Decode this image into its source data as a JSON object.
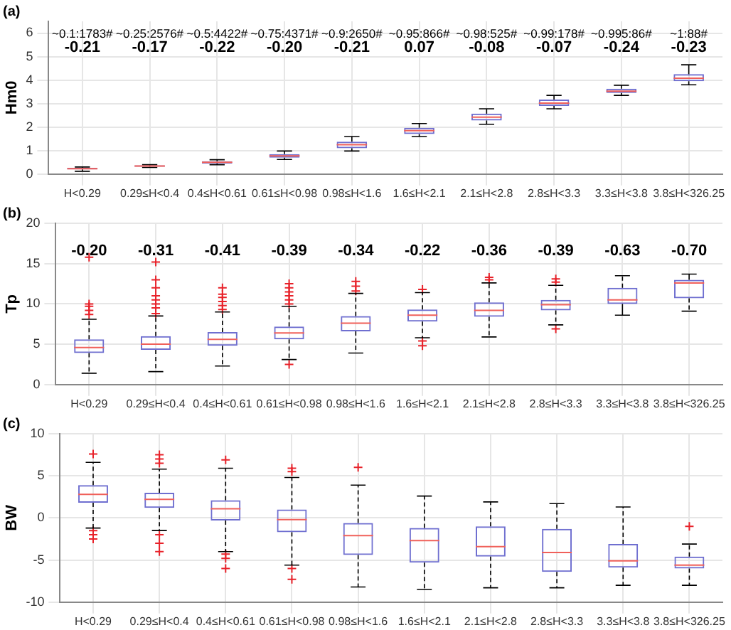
{
  "chart_data": [
    {
      "type": "box",
      "title": "(a)",
      "ylabel": "Hm0",
      "color": "#6f6fd0",
      "grid": true,
      "ylim": [
        0,
        6.5
      ],
      "yticks": [
        0,
        1,
        2,
        3,
        4,
        5,
        6
      ],
      "categories": [
        "H<0.29",
        "0.29≤H<0.4",
        "0.4≤H<0.61",
        "0.61≤H<0.98",
        "0.98≤H<1.6",
        "1.6≤H<2.1",
        "2.1≤H<2.8",
        "2.8≤H<3.3",
        "3.3≤H<3.8",
        "3.8≤H<326.25"
      ],
      "boxes": [
        {
          "low": 0.12,
          "q1": 0.2,
          "median": 0.23,
          "q3": 0.27,
          "high": 0.3
        },
        {
          "low": 0.28,
          "q1": 0.31,
          "median": 0.34,
          "q3": 0.37,
          "high": 0.4
        },
        {
          "low": 0.4,
          "q1": 0.45,
          "median": 0.5,
          "q3": 0.55,
          "high": 0.61
        },
        {
          "low": 0.62,
          "q1": 0.7,
          "median": 0.77,
          "q3": 0.85,
          "high": 0.98
        },
        {
          "low": 0.98,
          "q1": 1.1,
          "median": 1.25,
          "q3": 1.38,
          "high": 1.6
        },
        {
          "low": 1.6,
          "q1": 1.7,
          "median": 1.85,
          "q3": 1.97,
          "high": 2.15
        },
        {
          "low": 2.12,
          "q1": 2.28,
          "median": 2.42,
          "q3": 2.57,
          "high": 2.78
        },
        {
          "low": 2.78,
          "q1": 2.9,
          "median": 3.02,
          "q3": 3.17,
          "high": 3.35
        },
        {
          "low": 3.35,
          "q1": 3.45,
          "median": 3.53,
          "q3": 3.63,
          "high": 3.78
        },
        {
          "low": 3.8,
          "q1": 3.95,
          "median": 4.08,
          "q3": 4.25,
          "high": 4.65
        }
      ],
      "annotations": [
        "~0.1:1783#",
        "~0.25:2576#",
        "~0.5:4422#",
        "~0.75:4371#",
        "~0.9:2650#",
        "~0.95:866#",
        "~0.98:525#",
        "~0.99:178#",
        "~0.995:86#",
        "~1:88#",
        "-0.21",
        "-0.17",
        "-0.22",
        "-0.20",
        "-0.21",
        "0.07",
        "-0.08",
        "-0.07",
        "-0.24",
        "-0.23"
      ]
    },
    {
      "type": "box",
      "title": "(b)",
      "ylabel": "Tp",
      "color": "#6f6fd0",
      "grid": true,
      "ylim": [
        0,
        20
      ],
      "yticks": [
        0,
        5,
        10,
        15,
        20
      ],
      "categories": [
        "H<0.29",
        "0.29≤H<0.4",
        "0.4≤H<0.61",
        "0.61≤H<0.98",
        "0.98≤H<1.6",
        "1.6≤H<2.1",
        "2.1≤H<2.8",
        "2.8≤H<3.3",
        "3.3≤H<3.8",
        "3.8≤H<326.25"
      ],
      "boxes": [
        {
          "low": 1.4,
          "q1": 3.9,
          "median": 4.6,
          "q3": 5.6,
          "high": 8.1,
          "outliers": [
            8.7,
            9.2,
            9.7,
            10,
            15.8
          ]
        },
        {
          "low": 1.6,
          "q1": 4.3,
          "median": 5.0,
          "q3": 6.0,
          "high": 8.5,
          "outliers": [
            8.8,
            9.5,
            10,
            10.5,
            11,
            12,
            13,
            15.2
          ]
        },
        {
          "low": 2.3,
          "q1": 4.8,
          "median": 5.6,
          "q3": 6.5,
          "high": 9.0,
          "outliers": [
            9.3,
            9.8,
            10.3,
            10.8,
            11.2,
            12
          ]
        },
        {
          "low": 3.1,
          "q1": 5.6,
          "median": 6.4,
          "q3": 7.2,
          "high": 9.7,
          "outliers": [
            10,
            10.5,
            11,
            11.5,
            12,
            12.5,
            2.5
          ]
        },
        {
          "low": 3.9,
          "q1": 6.6,
          "median": 7.6,
          "q3": 8.5,
          "high": 11.3,
          "outliers": [
            11.6,
            12.2,
            12.8
          ]
        },
        {
          "low": 5.8,
          "q1": 7.8,
          "median": 8.6,
          "q3": 9.3,
          "high": 11.4,
          "outliers": [
            11.8,
            5.4,
            4.8
          ]
        },
        {
          "low": 5.9,
          "q1": 8.4,
          "median": 9.2,
          "q3": 10.2,
          "high": 12.6,
          "outliers": [
            13,
            13.3
          ]
        },
        {
          "low": 7.4,
          "q1": 9.2,
          "median": 9.9,
          "q3": 10.5,
          "high": 12.3,
          "outliers": [
            12.7,
            13.1,
            6.9
          ]
        },
        {
          "low": 8.6,
          "q1": 10,
          "median": 10.5,
          "q3": 12,
          "high": 13.5
        },
        {
          "low": 9.1,
          "q1": 10.7,
          "median": 12.6,
          "q3": 13,
          "high": 13.7
        }
      ],
      "annotations": [
        "-0.20",
        "-0.31",
        "-0.41",
        "-0.39",
        "-0.34",
        "-0.22",
        "-0.36",
        "-0.39",
        "-0.63",
        "-0.70"
      ]
    },
    {
      "type": "box",
      "title": "(c)",
      "ylabel": "BW",
      "color": "#6f6fd0",
      "grid": true,
      "ylim": [
        -10,
        10
      ],
      "yticks": [
        -10,
        -5,
        0,
        5,
        10
      ],
      "categories": [
        "H<0.29",
        "0.29≤H<0.4",
        "0.4≤H<0.61",
        "0.61≤H<0.98",
        "0.98≤H<1.6",
        "1.6≤H<2.1",
        "2.1≤H<2.8",
        "2.8≤H<3.3",
        "3.3≤H<3.8",
        "3.8≤H<326.25"
      ],
      "boxes": [
        {
          "low": -1.2,
          "q1": 1.8,
          "median": 2.8,
          "q3": 3.9,
          "high": 6.6,
          "outliers": [
            7.6,
            -1.5,
            -2,
            -2.5
          ]
        },
        {
          "low": -1.5,
          "q1": 1.2,
          "median": 2.2,
          "q3": 3.0,
          "high": 5.8,
          "outliers": [
            6.5,
            7,
            7.5,
            -2,
            -3,
            -4
          ]
        },
        {
          "low": -4,
          "q1": -0.3,
          "median": 1.1,
          "q3": 2.1,
          "high": 5.9,
          "outliers": [
            6.9,
            -4.3,
            -4.8,
            -6
          ]
        },
        {
          "low": -5.6,
          "q1": -1.7,
          "median": -0.2,
          "q3": 1.0,
          "high": 4.8,
          "outliers": [
            5.5,
            5.9,
            -6,
            -7.3
          ]
        },
        {
          "low": -8.2,
          "q1": -4.4,
          "median": -2.1,
          "q3": -0.6,
          "high": 3.9,
          "outliers": [
            6
          ]
        },
        {
          "low": -8.5,
          "q1": -5.3,
          "median": -2.7,
          "q3": -1.2,
          "high": 2.6
        },
        {
          "low": -8.3,
          "q1": -4.6,
          "median": -3.4,
          "q3": -1,
          "high": 1.9
        },
        {
          "low": -8.3,
          "q1": -6.4,
          "median": -4.1,
          "q3": -1.3,
          "high": 1.7
        },
        {
          "low": -8,
          "q1": -5.9,
          "median": -5.1,
          "q3": -3.1,
          "high": 1.3
        },
        {
          "low": -8,
          "q1": -6,
          "median": -5.6,
          "q3": -4.6,
          "high": -3.1,
          "outliers": [
            -1
          ]
        }
      ]
    }
  ]
}
